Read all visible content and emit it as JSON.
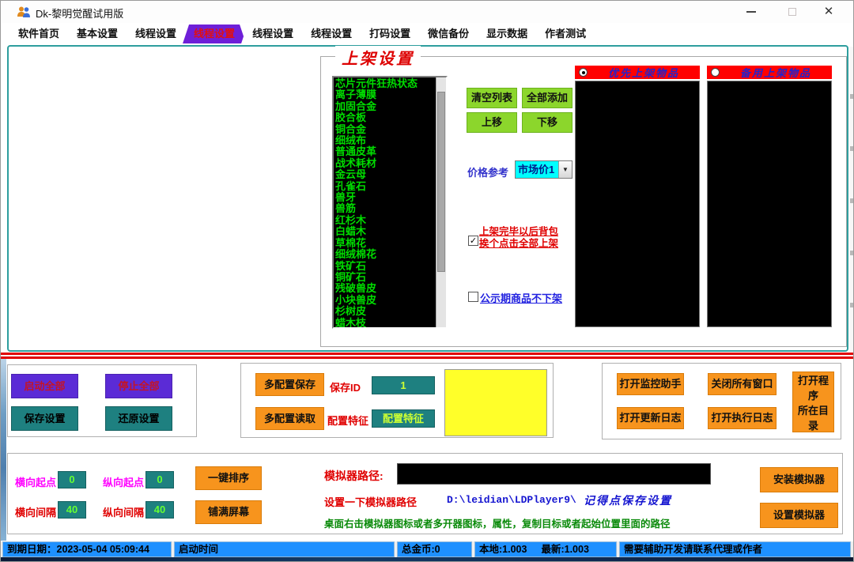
{
  "window": {
    "title": "Dk-黎明觉醒试用版",
    "icons": {
      "app": "two-users-icon",
      "minimize": "minimize-icon",
      "maximize": "maximize-icon",
      "close": "close-icon"
    }
  },
  "tabs": [
    {
      "label": "软件首页",
      "selected": false
    },
    {
      "label": "基本设置",
      "selected": false
    },
    {
      "label": "线程设置",
      "selected": false
    },
    {
      "label": "线程设置",
      "selected": true
    },
    {
      "label": "线程设置",
      "selected": false
    },
    {
      "label": "线程设置",
      "selected": false
    },
    {
      "label": "打码设置",
      "selected": false
    },
    {
      "label": "微信备份",
      "selected": false
    },
    {
      "label": "显示数据",
      "selected": false
    },
    {
      "label": "作者测试",
      "selected": false
    }
  ],
  "shelf": {
    "groupbox_title": "上架设置",
    "item_list": [
      "芯片元件狂热状态",
      "离子薄膜",
      "加固合金",
      "胶合板",
      "铜合金",
      "细绒布",
      "普通皮革",
      "战术耗材",
      "金云母",
      "孔雀石",
      "兽牙",
      "兽筋",
      "红杉木",
      "白蜡木",
      "草棉花",
      "细绒棉花",
      "铁矿石",
      "铜矿石",
      "残破兽皮",
      "小块兽皮",
      "杉树皮",
      "蜡木枝"
    ],
    "clear_button": "清空列表",
    "add_all_button": "全部添加",
    "move_up_button": "上移",
    "move_down_button": "下移",
    "price_ref_label": "价格参考",
    "price_ref_value": "市场价1",
    "checkbox_after_shelf": {
      "line1": "上架完毕以后背包",
      "line2": "挨个点击全部上架",
      "checked": true,
      "check_glyph": "✓"
    },
    "checkbox_no_delist": {
      "label": "公示期商品不下架",
      "checked": false
    },
    "radio_primary": {
      "label": "优先上架物品",
      "selected": true
    },
    "radio_backup": {
      "label": "备用上架物品",
      "selected": false
    }
  },
  "control_panel": {
    "start_all": "启动全部",
    "stop_all": "停止全部",
    "save_settings": "保存设置",
    "restore_settings": "还原设置",
    "multi_config_save": "多配置保存",
    "multi_config_load": "多配置读取",
    "save_id_label": "保存ID",
    "save_id_value": "1",
    "config_feature_label": "配置特征",
    "config_feature_button": "配置特征",
    "open_monitor": "打开监控助手",
    "close_all_windows": "关闭所有窗口",
    "open_update_log": "打开更新日志",
    "open_exec_log": "打开执行日志",
    "open_program_dir_line1": "打开程序",
    "open_program_dir_line2": "所在目录"
  },
  "layout_panel": {
    "h_start_label": "横向起点",
    "h_start_value": "0",
    "v_start_label": "纵向起点",
    "v_start_value": "0",
    "h_gap_label": "横向间隔",
    "h_gap_value": "40",
    "v_gap_label": "纵向间隔",
    "v_gap_value": "40",
    "sort_button": "一键排序",
    "fill_screen_button": "铺满屏幕",
    "emulator_path_label": "模拟器路径:",
    "emulator_path_value": "",
    "hint_set_path": "设置一下模拟器路径",
    "hint_path_example": "D:\\leidian\\LDPlayer9\\",
    "hint_remember_save": "记得点保存设置",
    "hint_howto": "桌面右击模拟器图标或者多开器图标，属性，复制目标或者起始位置里面的路径",
    "install_emulator": "安装模拟器",
    "setup_emulator": "设置模拟器"
  },
  "statusbar": {
    "expire_date": "到期日期：2023-05-04 05:09:44",
    "start_time": "启动时间",
    "total_coins": "总金币:0",
    "local_version": "本地:1.003",
    "latest_version": "最新:1.003",
    "contact": "需要辅助开发请联系代理或作者"
  },
  "colors": {
    "tab_selected_bg": "#6e1fd8",
    "tab_selected_text": "#e01010",
    "green_button": "#8cd62c",
    "teal_button": "#1e8080",
    "orange_button": "#f7941d",
    "purple_button": "#5b2bd6",
    "status_blue": "#1e90ff",
    "list_text_green": "#00dd00",
    "header_red": "#ff0000",
    "dropdown_cyan": "#00ffff",
    "yellow_box": "#ffff29"
  }
}
